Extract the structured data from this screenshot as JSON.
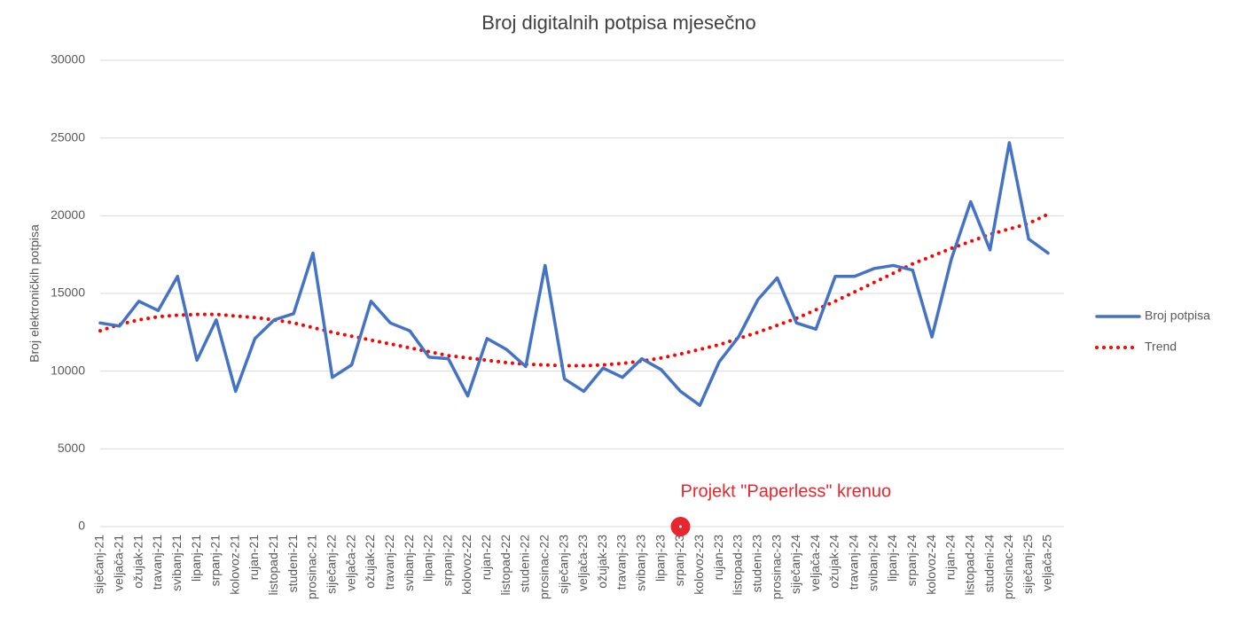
{
  "chart_data": {
    "type": "line",
    "title": "Broj digitalnih potpisa mjesečno",
    "y_label": "Broj elektroničkih potpisa",
    "categories": [
      "siječanj-21",
      "veljača-21",
      "ožujak-21",
      "travanj-21",
      "svibanj-21",
      "lipanj-21",
      "srpanj-21",
      "kolovoz-21",
      "rujan-21",
      "listopad-21",
      "studeni-21",
      "prosinac-21",
      "siječanj-22",
      "veljača-22",
      "ožujak-22",
      "travanj-22",
      "svibanj-22",
      "lipanj-22",
      "srpanj-22",
      "kolovoz-22",
      "rujan-22",
      "listopad-22",
      "studeni-22",
      "prosinac-22",
      "siječanj-23",
      "veljača-23",
      "ožujak-23",
      "travanj-23",
      "svibanj-23",
      "lipanj-23",
      "srpanj-23",
      "kolovoz-23",
      "rujan-23",
      "listopad-23",
      "studeni-23",
      "prosinac-23",
      "siječanj-24",
      "veljača-24",
      "ožujak-24",
      "travanj-24",
      "svibanj-24",
      "lipanj-24",
      "srpanj-24",
      "kolovoz-24",
      "rujan-24",
      "listopad-24",
      "studeni-24",
      "prosinac-24",
      "siječanj-25",
      "veljača-25"
    ],
    "series": [
      {
        "name": "Broj potpisa",
        "color": "#4472c4",
        "style": "solid",
        "values": [
          13100,
          12900,
          14500,
          13900,
          16100,
          10700,
          13300,
          8700,
          12100,
          13300,
          13700,
          17600,
          9600,
          10400,
          14500,
          13100,
          12600,
          10900,
          10800,
          8400,
          12100,
          11400,
          10300,
          16800,
          9500,
          8700,
          10200,
          9600,
          10800,
          10100,
          8700,
          7800,
          10600,
          12200,
          14600,
          16000,
          13100,
          12700,
          16100,
          16100,
          16600,
          16800,
          16500,
          12200,
          17200,
          20900,
          17800,
          24700,
          18500,
          17600
        ]
      },
      {
        "name": "Trend",
        "color": "#ff0000",
        "style": "dotted",
        "values": [
          12600,
          13000,
          13300,
          13500,
          13600,
          13650,
          13650,
          13550,
          13450,
          13300,
          13100,
          12800,
          12500,
          12250,
          12000,
          11750,
          11500,
          11250,
          11000,
          10850,
          10700,
          10550,
          10450,
          10400,
          10350,
          10350,
          10400,
          10500,
          10650,
          10850,
          11100,
          11400,
          11700,
          12100,
          12500,
          12950,
          13400,
          13950,
          14500,
          15100,
          15700,
          16300,
          16900,
          17400,
          17900,
          18350,
          18800,
          19150,
          19500,
          20100
        ]
      }
    ],
    "ylim": [
      0,
      30000
    ],
    "yticks": [
      0,
      5000,
      10000,
      15000,
      20000,
      25000,
      30000
    ],
    "grid": true,
    "legend": "right",
    "annotation": {
      "text": "Projekt \"Paperless\" krenuo",
      "at": "srpanj-23"
    }
  }
}
